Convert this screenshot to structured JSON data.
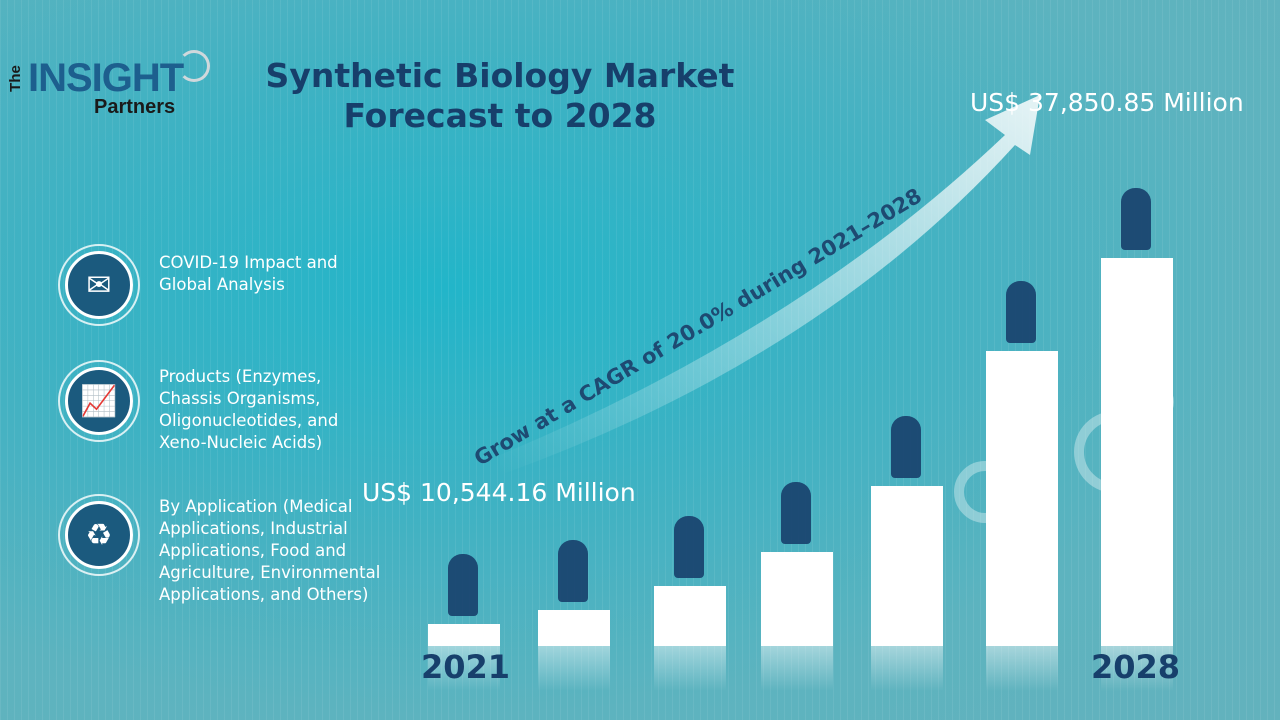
{
  "logo": {
    "the": "The",
    "insight": "INSIGHT",
    "partners": "Partners"
  },
  "title": {
    "line1": "Synthetic Biology Market",
    "line2": "Forecast to 2028"
  },
  "features": [
    {
      "icon": "envelope-icon",
      "label": "COVID-19 Impact and Global Analysis"
    },
    {
      "icon": "growth-chart-icon",
      "label": "Products (Enzymes, Chassis Organisms, Oligonucleotides, and Xeno-Nucleic Acids)"
    },
    {
      "icon": "recycle-arrows-icon",
      "label": "By Application (Medical Applications, Industrial Applications, Food and Agriculture, Environmental Applications, and Others)"
    }
  ],
  "market": {
    "start_value": "US$ 10,544.16 Million",
    "end_value": "US$ 37,850.85 Million",
    "start_year": "2021",
    "end_year": "2028",
    "cagr_text": "Grow at a CAGR of 20.0% during 2021–2028"
  },
  "colors": {
    "navy": "#173f6b",
    "icon_bg": "#1b5a7e",
    "background": "#3eb2c3"
  }
}
